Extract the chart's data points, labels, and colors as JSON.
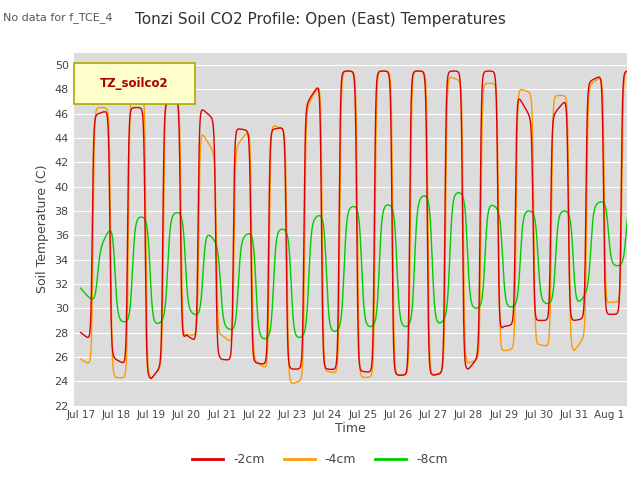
{
  "title": "Tonzi Soil CO2 Profile: Open (East) Temperatures",
  "subtitle": "No data for f_TCE_4",
  "ylabel": "Soil Temperature (C)",
  "xlabel": "Time",
  "legend_label": "TZ_soilco2",
  "ylim": [
    22,
    51
  ],
  "yticks": [
    22,
    24,
    26,
    28,
    30,
    32,
    34,
    36,
    38,
    40,
    42,
    44,
    46,
    48,
    50
  ],
  "bg_color": "#dcdcdc",
  "line_colors": {
    "neg2cm": "#dd0000",
    "neg4cm": "#ff9900",
    "neg8cm": "#00cc00"
  },
  "n_days": 16,
  "points_per_day": 288,
  "neg2cm": {
    "peaks": [
      45.5,
      46.5,
      46.5,
      47.5,
      45.0,
      44.5,
      45.0,
      49.5,
      49.5,
      49.5,
      49.5,
      49.5,
      49.5,
      44.5,
      48.0,
      49.5
    ],
    "troughs": [
      28.0,
      25.8,
      24.2,
      27.8,
      25.8,
      25.5,
      25.0,
      25.0,
      24.8,
      24.5,
      24.5,
      25.0,
      28.5,
      29.0,
      29.0,
      29.5
    ],
    "peak_phase": 0.58,
    "sharpness": 4.0
  },
  "neg4cm": {
    "peaks": [
      46.5,
      46.5,
      49.0,
      46.5,
      41.8,
      45.5,
      44.5,
      49.5,
      49.5,
      49.5,
      49.5,
      48.5,
      48.5,
      47.5,
      47.5,
      49.5
    ],
    "troughs": [
      25.8,
      24.3,
      24.2,
      27.8,
      27.8,
      25.5,
      23.8,
      24.8,
      24.3,
      24.5,
      24.5,
      25.5,
      26.5,
      27.0,
      26.5,
      30.5
    ],
    "peak_phase": 0.6,
    "sharpness": 4.0
  },
  "neg8cm": {
    "peaks": [
      32.0,
      37.5,
      37.5,
      38.0,
      35.0,
      36.5,
      36.5,
      38.0,
      38.5,
      38.5,
      39.5,
      39.5,
      38.0,
      38.0,
      38.0,
      39.0
    ],
    "troughs": [
      31.5,
      29.0,
      28.5,
      29.8,
      28.5,
      27.5,
      27.5,
      28.0,
      28.5,
      28.5,
      28.5,
      30.0,
      30.0,
      30.5,
      30.0,
      33.5
    ],
    "peak_phase": 0.72,
    "sharpness": 2.0
  }
}
